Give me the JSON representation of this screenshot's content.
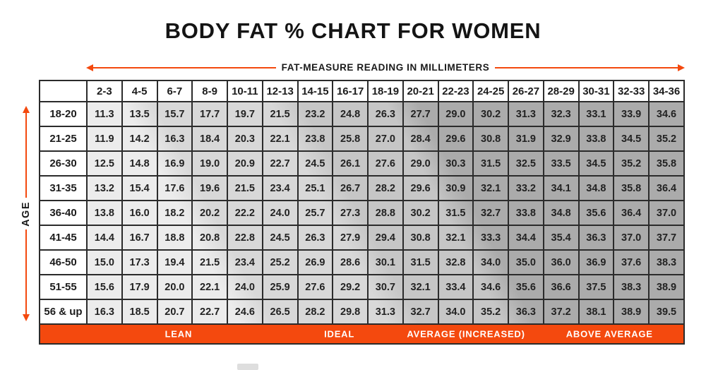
{
  "title": "BODY FAT % CHART FOR WOMEN",
  "top_axis_label": "FAT-MEASURE READING IN MILLIMETERS",
  "left_axis_label": "AGE",
  "colors": {
    "accent": "#F4490E",
    "grid": "#2B2B2B",
    "band1": "#ECECEC",
    "band2": "#D8D8D8",
    "band3": "#C6C6C6",
    "band4": "#ABABAB",
    "category_text": "#FFFFFF",
    "title_text": "#141414"
  },
  "chart_data": {
    "type": "table",
    "title": "BODY FAT % CHART FOR WOMEN",
    "xlabel": "FAT-MEASURE READING IN MILLIMETERS",
    "ylabel": "AGE",
    "columns": [
      "2-3",
      "4-5",
      "6-7",
      "8-9",
      "10-11",
      "12-13",
      "14-15",
      "16-17",
      "18-19",
      "20-21",
      "22-23",
      "24-25",
      "26-27",
      "28-29",
      "30-31",
      "32-33",
      "34-36"
    ],
    "rows": [
      {
        "age": "18-20",
        "values": [
          "11.3",
          "13.5",
          "15.7",
          "17.7",
          "19.7",
          "21.5",
          "23.2",
          "24.8",
          "26.3",
          "27.7",
          "29.0",
          "30.2",
          "31.3",
          "32.3",
          "33.1",
          "33.9",
          "34.6"
        ]
      },
      {
        "age": "21-25",
        "values": [
          "11.9",
          "14.2",
          "16.3",
          "18.4",
          "20.3",
          "22.1",
          "23.8",
          "25.8",
          "27.0",
          "28.4",
          "29.6",
          "30.8",
          "31.9",
          "32.9",
          "33.8",
          "34.5",
          "35.2"
        ]
      },
      {
        "age": "26-30",
        "values": [
          "12.5",
          "14.8",
          "16.9",
          "19.0",
          "20.9",
          "22.7",
          "24.5",
          "26.1",
          "27.6",
          "29.0",
          "30.3",
          "31.5",
          "32.5",
          "33.5",
          "34.5",
          "35.2",
          "35.8"
        ]
      },
      {
        "age": "31-35",
        "values": [
          "13.2",
          "15.4",
          "17.6",
          "19.6",
          "21.5",
          "23.4",
          "25.1",
          "26.7",
          "28.2",
          "29.6",
          "30.9",
          "32.1",
          "33.2",
          "34.1",
          "34.8",
          "35.8",
          "36.4"
        ]
      },
      {
        "age": "36-40",
        "values": [
          "13.8",
          "16.0",
          "18.2",
          "20.2",
          "22.2",
          "24.0",
          "25.7",
          "27.3",
          "28.8",
          "30.2",
          "31.5",
          "32.7",
          "33.8",
          "34.8",
          "35.6",
          "36.4",
          "37.0"
        ]
      },
      {
        "age": "41-45",
        "values": [
          "14.4",
          "16.7",
          "18.8",
          "20.8",
          "22.8",
          "24.5",
          "26.3",
          "27.9",
          "29.4",
          "30.8",
          "32.1",
          "33.3",
          "34.4",
          "35.4",
          "36.3",
          "37.0",
          "37.7"
        ]
      },
      {
        "age": "46-50",
        "values": [
          "15.0",
          "17.3",
          "19.4",
          "21.5",
          "23.4",
          "25.2",
          "26.9",
          "28.6",
          "30.1",
          "31.5",
          "32.8",
          "34.0",
          "35.0",
          "36.0",
          "36.9",
          "37.6",
          "38.3"
        ]
      },
      {
        "age": "51-55",
        "values": [
          "15.6",
          "17.9",
          "20.0",
          "22.1",
          "24.0",
          "25.9",
          "27.6",
          "29.2",
          "30.7",
          "32.1",
          "33.4",
          "34.6",
          "35.6",
          "36.6",
          "37.5",
          "38.3",
          "38.9"
        ]
      },
      {
        "age": "56 & up",
        "values": [
          "16.3",
          "18.5",
          "20.7",
          "22.7",
          "24.6",
          "26.5",
          "28.2",
          "29.8",
          "31.3",
          "32.7",
          "34.0",
          "35.2",
          "36.3",
          "37.2",
          "38.1",
          "38.9",
          "39.5"
        ]
      }
    ],
    "footer_categories": [
      {
        "label": "LEAN",
        "center_pct": 21.5
      },
      {
        "label": "IDEAL",
        "center_pct": 46.5
      },
      {
        "label": "AVERAGE (INCREASED)",
        "center_pct": 66.2
      },
      {
        "label": "ABOVE AVERAGE",
        "center_pct": 88.5
      }
    ],
    "legend_position": "bottom",
    "grid": true
  }
}
